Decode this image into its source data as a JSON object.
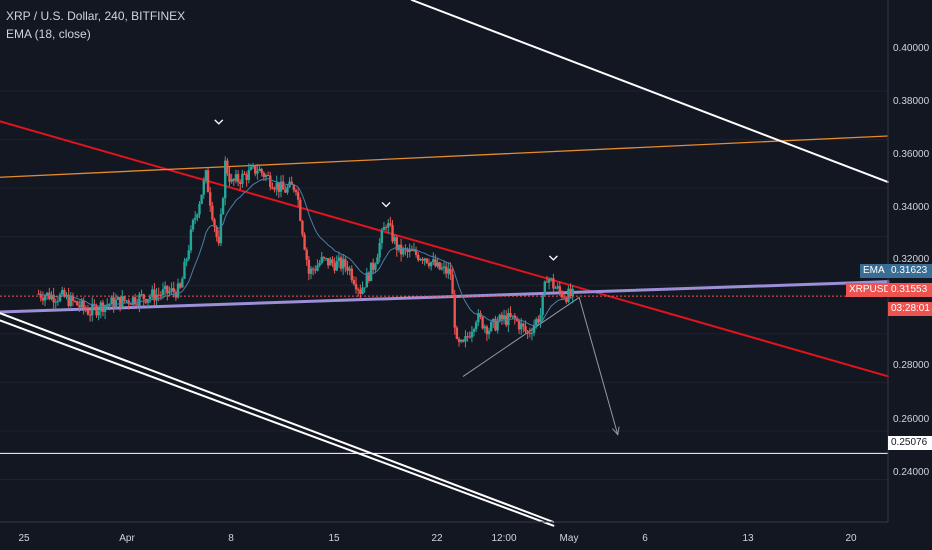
{
  "header": {
    "title": "XRP / U.S. Dollar, 240, BITFINEX",
    "indicator": "EMA (18, close)"
  },
  "y_axis": {
    "labels": [
      "0.40000",
      "0.38000",
      "0.36000",
      "0.34000",
      "0.32000",
      "0.28000",
      "0.26000",
      "0.24000"
    ]
  },
  "x_axis": {
    "labels": [
      "25",
      "Apr",
      "8",
      "15",
      "22",
      "12:00",
      "May",
      "6",
      "13",
      "20"
    ]
  },
  "tags": {
    "ema_label": "EMA",
    "ema_value": "0.31623",
    "symbol_label": "XRPUSD",
    "price_value": "0.31553",
    "countdown": "03:28:01",
    "level_value": "0.25076"
  },
  "colors": {
    "background": "#131722",
    "up": "#26a69a",
    "down": "#ef5350",
    "ema": "#4a7fa8",
    "falling_trendline": "#e0141e",
    "support_line": "#9b8fd6",
    "resistance_line": "#e68a2e",
    "channel_lines": "#ffffff",
    "current_price": "#ef5350"
  },
  "chart_data": {
    "type": "candlestick",
    "symbol": "XRPUSD",
    "exchange": "BITFINEX",
    "timeframe": "240",
    "indicator": "EMA (18, close)",
    "ylim": [
      0.2225,
      0.4375
    ],
    "ema_last": 0.31623,
    "last_price": 0.31553,
    "horizontal_level": 0.25076,
    "swing_high_markers": [
      {
        "date": "2019-04-05",
        "price": 0.384
      },
      {
        "date": "2019-04-18",
        "price": 0.35
      },
      {
        "date": "2019-05-01",
        "price": 0.328
      }
    ],
    "price_path": [
      [
        "2019-03-22",
        0.3165
      ],
      [
        "2019-03-24",
        0.315
      ],
      [
        "2019-03-26",
        0.309
      ],
      [
        "2019-03-27",
        0.312
      ],
      [
        "2019-03-29",
        0.314
      ],
      [
        "2019-03-31",
        0.316
      ],
      [
        "2019-04-02",
        0.318
      ],
      [
        "2019-04-03",
        0.345
      ],
      [
        "2019-04-04",
        0.365
      ],
      [
        "2019-04-05",
        0.335
      ],
      [
        "2019-04-05T12:00",
        0.37
      ],
      [
        "2019-04-06",
        0.362
      ],
      [
        "2019-04-08",
        0.368
      ],
      [
        "2019-04-10",
        0.359
      ],
      [
        "2019-04-11",
        0.361
      ],
      [
        "2019-04-12",
        0.325
      ],
      [
        "2019-04-13",
        0.33
      ],
      [
        "2019-04-15",
        0.328
      ],
      [
        "2019-04-16",
        0.318
      ],
      [
        "2019-04-17",
        0.328
      ],
      [
        "2019-04-18",
        0.346
      ],
      [
        "2019-04-19",
        0.334
      ],
      [
        "2019-04-21",
        0.332
      ],
      [
        "2019-04-22",
        0.327
      ],
      [
        "2019-04-23",
        0.325
      ],
      [
        "2019-04-23T12:00",
        0.295
      ],
      [
        "2019-04-24",
        0.295
      ],
      [
        "2019-04-25",
        0.307
      ],
      [
        "2019-04-26",
        0.302
      ],
      [
        "2019-04-27",
        0.306
      ],
      [
        "2019-04-28",
        0.306
      ],
      [
        "2019-04-29",
        0.3
      ],
      [
        "2019-04-30",
        0.308
      ],
      [
        "2019-04-30T12:00",
        0.324
      ],
      [
        "2019-05-01",
        0.32
      ],
      [
        "2019-05-01T12:00",
        0.317
      ],
      [
        "2019-05-02",
        0.316
      ],
      [
        "2019-05-02T12:00",
        0.31553
      ]
    ],
    "drawings": [
      {
        "kind": "trendline",
        "color": "red",
        "from": [
          "2019-03-19",
          0.3875
        ],
        "to": [
          "2019-05-27",
          0.2825
        ]
      },
      {
        "kind": "trendline",
        "color": "lavender",
        "from": [
          "2019-03-19",
          0.309
        ],
        "to": [
          "2019-05-27",
          0.3215
        ]
      },
      {
        "kind": "trendline",
        "color": "orange",
        "from": [
          "2019-03-19",
          0.3645
        ],
        "to": [
          "2019-05-27",
          0.3815
        ]
      },
      {
        "kind": "trendline",
        "color": "white",
        "from": [
          "2019-04-20",
          0.4375
        ],
        "to": [
          "2019-05-27",
          0.3625
        ]
      },
      {
        "kind": "trendline",
        "color": "white",
        "from": [
          "2019-03-19",
          0.3085
        ],
        "to": [
          "2019-05-01",
          0.2225
        ]
      },
      {
        "kind": "trendline",
        "color": "white",
        "from": [
          "2019-03-19",
          0.3055
        ],
        "to": [
          "2019-05-01",
          0.221
        ]
      },
      {
        "kind": "trendline",
        "color": "grey",
        "from": [
          "2019-04-24",
          0.2825
        ],
        "to": [
          "2019-05-03",
          0.315
        ]
      },
      {
        "kind": "arrow",
        "color": "grey",
        "from": [
          "2019-05-03",
          0.315
        ],
        "to": [
          "2019-05-06",
          0.2585
        ]
      }
    ]
  }
}
